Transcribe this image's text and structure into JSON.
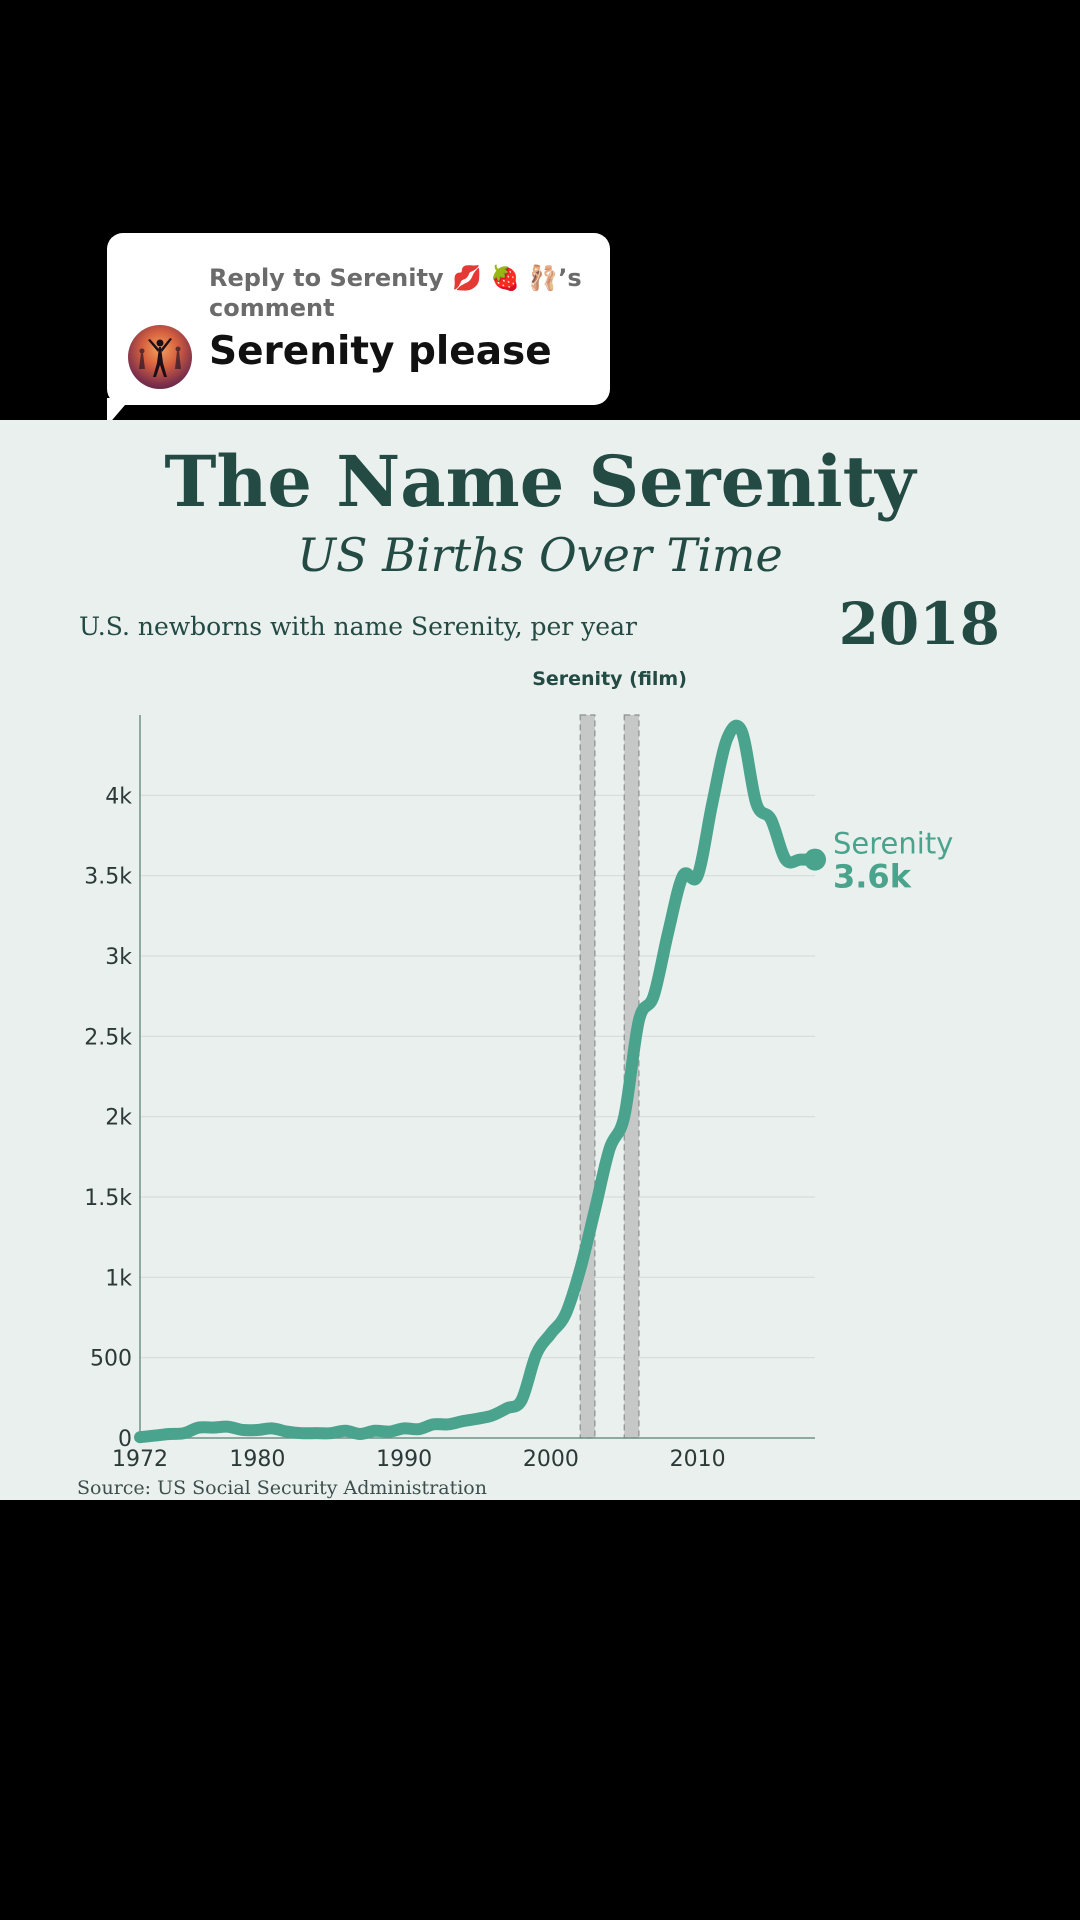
{
  "comment": {
    "reply_label": "Reply to Serenity 💋 🍓 🩰’s comment",
    "text": "Serenity please"
  },
  "chart_data": {
    "type": "line",
    "title": "The Name Serenity",
    "subtitle": "US Births Over Time",
    "description": "U.S. newborns with name Serenity, per year",
    "current_year": "2018",
    "source": "Source: US Social Security Administration",
    "xlim": [
      1972,
      2018
    ],
    "ylim": [
      0,
      4500
    ],
    "x_ticks": [
      1972,
      1980,
      1990,
      2000,
      2010
    ],
    "y_ticks": [
      {
        "value": 0,
        "label": "0"
      },
      {
        "value": 500,
        "label": "500"
      },
      {
        "value": 1000,
        "label": "1k"
      },
      {
        "value": 1500,
        "label": "1.5k"
      },
      {
        "value": 2000,
        "label": "2k"
      },
      {
        "value": 2500,
        "label": "2.5k"
      },
      {
        "value": 3000,
        "label": "3k"
      },
      {
        "value": 3500,
        "label": "3.5k"
      },
      {
        "value": 4000,
        "label": "4k"
      }
    ],
    "grid": true,
    "annotation": {
      "label": "Serenity (film)",
      "bands": [
        [
          2002,
          2003
        ],
        [
          2005,
          2006
        ]
      ]
    },
    "series": [
      {
        "name": "Serenity",
        "color": "#4aa38c",
        "end_label": "3.6k",
        "x": [
          1972,
          1973,
          1974,
          1975,
          1976,
          1977,
          1978,
          1979,
          1980,
          1981,
          1982,
          1983,
          1984,
          1985,
          1986,
          1987,
          1988,
          1989,
          1990,
          1991,
          1992,
          1993,
          1994,
          1995,
          1996,
          1997,
          1998,
          1999,
          2000,
          2001,
          2002,
          2003,
          2004,
          2005,
          2006,
          2007,
          2008,
          2009,
          2010,
          2011,
          2012,
          2013,
          2014,
          2015,
          2016,
          2017,
          2018
        ],
        "y": [
          5,
          15,
          25,
          30,
          65,
          65,
          70,
          50,
          50,
          60,
          40,
          30,
          30,
          30,
          45,
          25,
          45,
          40,
          60,
          55,
          85,
          85,
          105,
          120,
          140,
          185,
          235,
          520,
          650,
          770,
          1050,
          1420,
          1800,
          2000,
          2600,
          2750,
          3150,
          3500,
          3500,
          3950,
          4350,
          4400,
          3950,
          3850,
          3600,
          3600,
          3600
        ]
      }
    ]
  }
}
